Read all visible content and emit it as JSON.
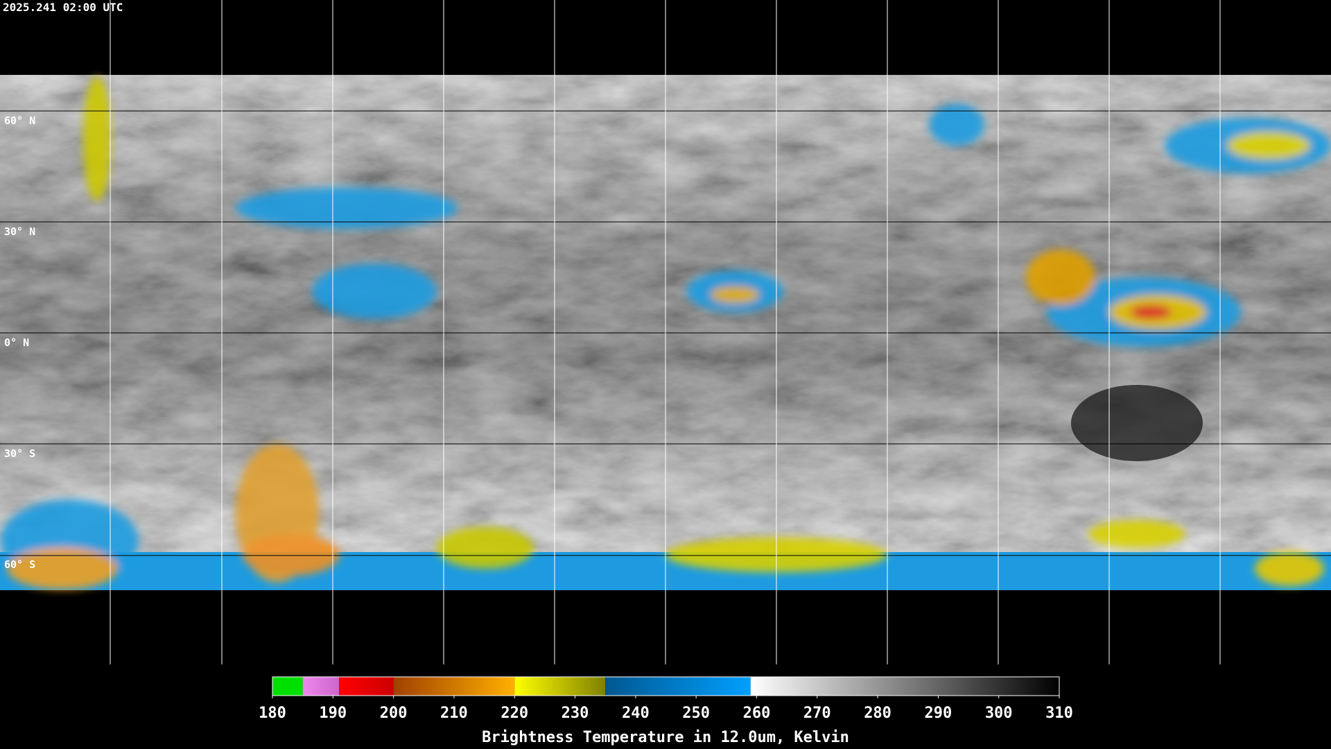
{
  "timestamp": "2025.241 02:00 UTC",
  "lat_labels": [
    "60° N",
    "30° N",
    "0° N",
    "30° S",
    "60° S"
  ],
  "colorbar": {
    "range": [
      180,
      310
    ],
    "ticks": [
      180,
      190,
      200,
      210,
      220,
      230,
      240,
      250,
      260,
      270,
      280,
      290,
      300,
      310
    ],
    "label": "Brightness Temperature in 12.0um, Kelvin",
    "segments": [
      {
        "from": 180,
        "to": 185,
        "colors": [
          "#00e000",
          "#00e000"
        ]
      },
      {
        "from": 185,
        "to": 191,
        "colors": [
          "#ee88ee",
          "#cc66cc"
        ]
      },
      {
        "from": 191,
        "to": 200,
        "colors": [
          "#ff0000",
          "#cc0000"
        ]
      },
      {
        "from": 200,
        "to": 220,
        "colors": [
          "#a04000",
          "#ffb000"
        ]
      },
      {
        "from": 220,
        "to": 235,
        "colors": [
          "#ffff00",
          "#808000"
        ]
      },
      {
        "from": 235,
        "to": 259,
        "colors": [
          "#005890",
          "#00a0ff"
        ]
      },
      {
        "from": 259,
        "to": 310,
        "colors": [
          "#ffffff",
          "#000000"
        ]
      }
    ]
  }
}
